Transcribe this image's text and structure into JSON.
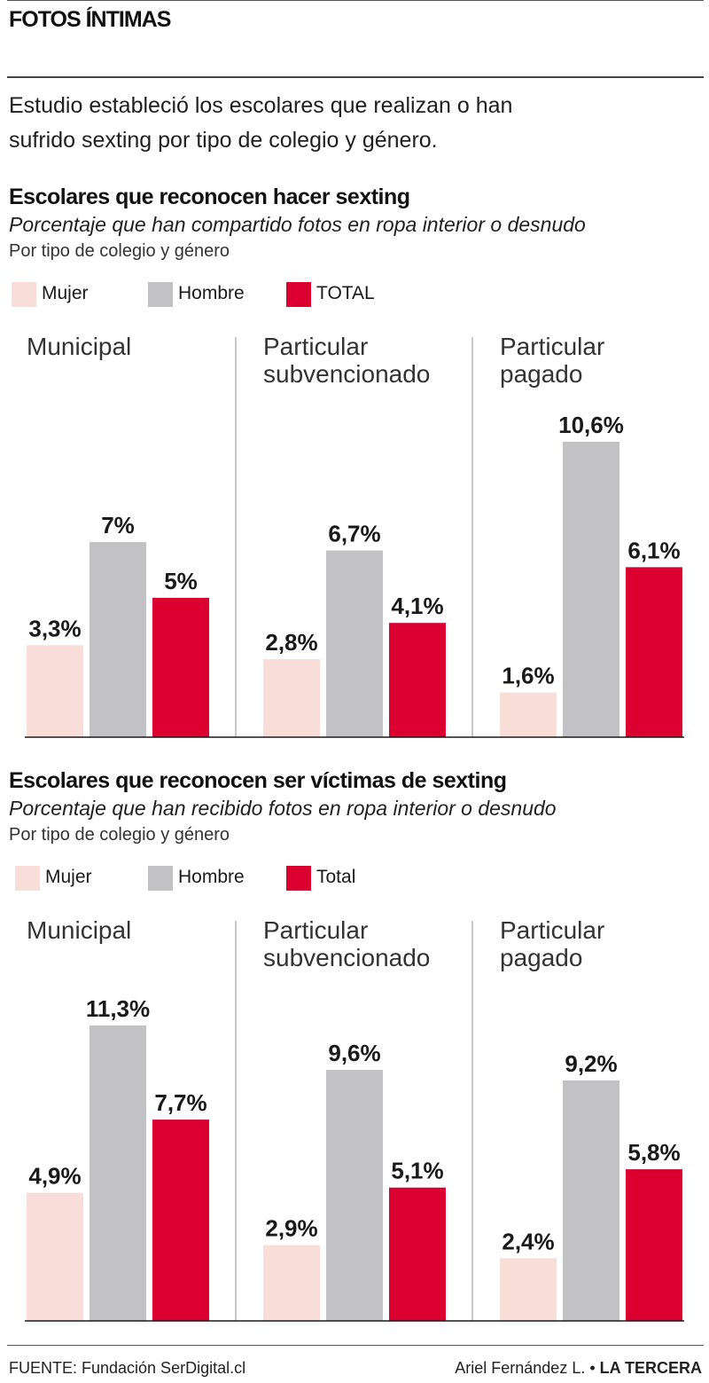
{
  "header": {
    "kicker": "FOTOS ÍNTIMAS",
    "intro_line1": "Estudio estableció los escolares que realizan o han",
    "intro_line2": "sufrido sexting por tipo de colegio y género."
  },
  "colors": {
    "mujer": "#f9ddd8",
    "hombre": "#c2c2c4",
    "total": "#dc0030",
    "divider": "#b5b5b5",
    "baseline": "#1a1a1a"
  },
  "sections": [
    {
      "title": "Escolares que reconocen hacer sexting",
      "subtitle": "Porcentaje que han compartido fotos en ropa interior o desnudo",
      "note": "Por tipo de colegio y género",
      "legend": [
        "Mujer",
        "Hombre",
        "TOTAL"
      ]
    },
    {
      "title": "Escolares que reconocen ser víctimas de sexting",
      "subtitle": "Porcentaje que han recibido fotos en ropa interior o desnudo",
      "note": "Por tipo de colegio y género",
      "legend": [
        "Mujer",
        "Hombre",
        "Total"
      ]
    }
  ],
  "chart_data": [
    {
      "type": "bar",
      "title": "Escolares que reconocen hacer sexting",
      "categories": [
        [
          "Municipal"
        ],
        [
          "Particular",
          "subvencionado"
        ],
        [
          "Particular",
          "pagado"
        ]
      ],
      "series": [
        {
          "name": "Mujer",
          "values": [
            3.3,
            2.8,
            1.6
          ],
          "labels": [
            "3,3%",
            "2,8%",
            "1,6%"
          ]
        },
        {
          "name": "Hombre",
          "values": [
            7,
            6.7,
            10.6
          ],
          "labels": [
            "7%",
            "6,7%",
            "10,6%"
          ]
        },
        {
          "name": "TOTAL",
          "values": [
            5,
            4.1,
            6.1
          ],
          "labels": [
            "5%",
            "4,1%",
            "6,1%"
          ]
        }
      ],
      "ylim": [
        0,
        10.6
      ],
      "grid": false
    },
    {
      "type": "bar",
      "title": "Escolares que reconocen ser víctimas de sexting",
      "categories": [
        [
          "Municipal"
        ],
        [
          "Particular",
          "subvencionado"
        ],
        [
          "Particular",
          "pagado"
        ]
      ],
      "series": [
        {
          "name": "Mujer",
          "values": [
            4.9,
            2.9,
            2.4
          ],
          "labels": [
            "4,9%",
            "2,9%",
            "2,4%"
          ]
        },
        {
          "name": "Hombre",
          "values": [
            11.3,
            9.6,
            9.2
          ],
          "labels": [
            "11,3%",
            "9,6%",
            "9,2%"
          ]
        },
        {
          "name": "Total",
          "values": [
            7.7,
            5.1,
            5.8
          ],
          "labels": [
            "7,7%",
            "5,1%",
            "5,8%"
          ]
        }
      ],
      "ylim": [
        0,
        11.3
      ],
      "grid": false
    }
  ],
  "footer": {
    "source": "FUENTE: Fundación SerDigital.cl",
    "author": "Ariel Fernández L. •",
    "brand": "LA TERCERA"
  }
}
